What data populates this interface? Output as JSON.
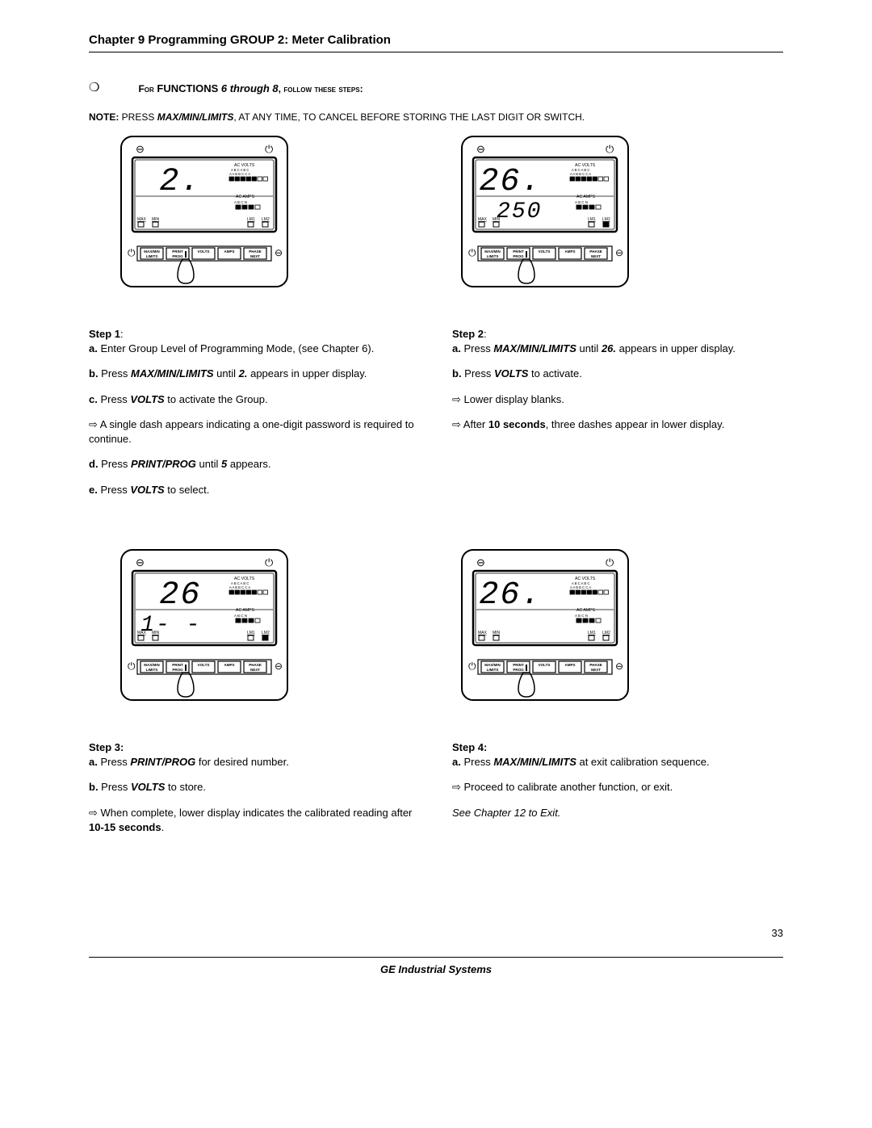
{
  "header": {
    "chapter_title": "Chapter 9  Programming GROUP 2:  Meter Calibration"
  },
  "section": {
    "lead_prefix": "For",
    "lead_funcs": "FUNCTIONS",
    "lead_range": "6 through 8",
    "lead_tail": ", follow these steps:"
  },
  "note": {
    "label": "NOTE:",
    "pre": "  PRESS ",
    "cmd": "MAX/MIN/LIMITS",
    "post": ", AT ANY TIME, TO CANCEL BEFORE STORING THE LAST DIGIT OR SWITCH."
  },
  "meters": {
    "m1": {
      "upper": "2.",
      "lower": "",
      "lm2_filled": false
    },
    "m2": {
      "upper": "26.",
      "lower": "250",
      "lm2_filled": true
    },
    "m3": {
      "upper": "26",
      "lower": "1- -",
      "lm2_filled": true
    },
    "m4": {
      "upper": "26.",
      "lower": "",
      "lm2_filled": false
    }
  },
  "meter_labels": {
    "ac_volts": "AC VOLTS",
    "volts_row1": "A B C A B C",
    "volts_row2": "A A B B C C A",
    "ac_amps": "AC AMPS",
    "amps_row": "A  B  C  N",
    "max": "MAX",
    "min": "MIN",
    "lm1": "LM1",
    "lm2": "LM2",
    "btns": [
      "MAX/MIN\nLIMITS",
      "PRINT\nPROG",
      "VOLTS",
      "AMPS",
      "PHASE\nNEXT"
    ]
  },
  "meter_style": {
    "outer_w": 210,
    "outer_h": 220,
    "bezel_rx": 14,
    "stroke": "#000000",
    "bg": "#ffffff",
    "seg_font": "'DS-Digital','Courier New',monospace",
    "seg_size_upper": 40,
    "seg_size_lower": 28,
    "label_font_size": 5.2,
    "led_w": 7,
    "led_h": 5
  },
  "steps": {
    "s1": {
      "title": "Step 1",
      "lines": [
        {
          "pre": "a.  ",
          "plain": "Enter Group Level of Programming Mode, (see Chapter 6)."
        },
        {
          "pre": "b.  ",
          "plain_pre": "Press ",
          "bi": "MAX/MIN/LIMITS",
          "plain_mid": " until ",
          "bi2": "2.",
          "plain_post": " appears in upper display."
        },
        {
          "pre": "c.  ",
          "plain_pre": "Press ",
          "bi": "VOLTS",
          "plain_post": " to activate the Group."
        },
        {
          "arrow": true,
          "plain": "A single dash appears indicating a one-digit password is required to continue."
        },
        {
          "pre": "d.  ",
          "plain_pre": "Press ",
          "bi": "PRINT/PROG",
          "plain_mid": " until ",
          "bi2": "5",
          "plain_post": " appears."
        },
        {
          "pre": "e.  ",
          "plain_pre": "Press ",
          "bi": "VOLTS",
          "plain_post": " to select."
        }
      ]
    },
    "s2": {
      "title": "Step 2",
      "lines": [
        {
          "pre": "a.  ",
          "plain_pre": "Press ",
          "bi": "MAX/MIN/LIMITS",
          "plain_mid": " until ",
          "bi2": "26.",
          "plain_post": " appears in upper display."
        },
        {
          "pre": "b.  ",
          "plain_pre": "Press ",
          "bi": "VOLTS",
          "plain_post": " to activate."
        },
        {
          "arrow": true,
          "plain": "Lower display blanks."
        },
        {
          "arrow": true,
          "plain_pre": "After ",
          "b": "10 seconds",
          "plain_post": ", three dashes appear in lower display."
        }
      ]
    },
    "s3": {
      "title": "Step 3:",
      "lines": [
        {
          "pre": "a.  ",
          "plain_pre": "Press ",
          "bi": "PRINT/PROG",
          "plain_post": " for desired number."
        },
        {
          "pre": "b.  ",
          "plain_pre": "Press ",
          "bi": "VOLTS",
          "plain_post": " to store."
        },
        {
          "arrow": true,
          "plain_pre": "When complete, lower display indicates the calibrated reading after ",
          "b": "10-15 seconds",
          "plain_post": "."
        }
      ]
    },
    "s4": {
      "title": "Step 4:",
      "lines": [
        {
          "pre": "a.  ",
          "plain_pre": "Press ",
          "bi": "MAX/MIN/LIMITS",
          "plain_post": " at exit calibration sequence."
        },
        {
          "arrow": true,
          "plain": "Proceed to calibrate another function, or exit."
        }
      ],
      "tail_italic": "See Chapter 12 to Exit."
    }
  },
  "page_number": "33",
  "footer": "GE Industrial Systems"
}
